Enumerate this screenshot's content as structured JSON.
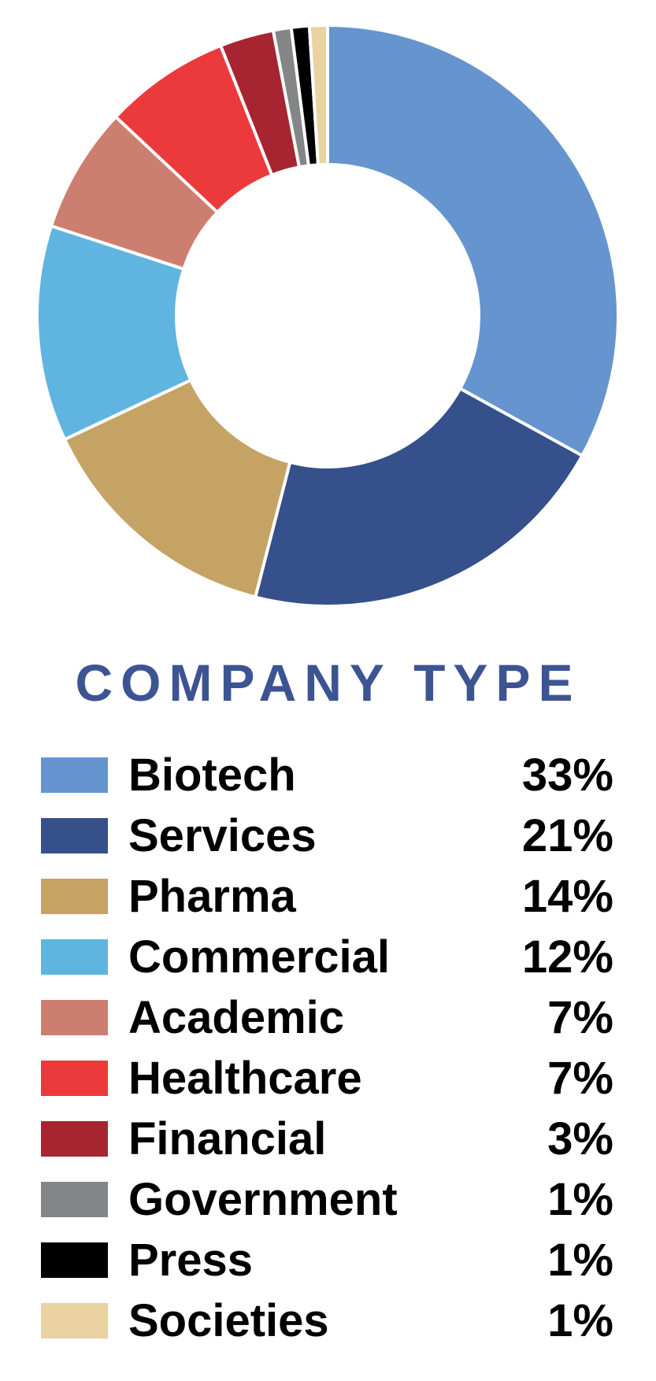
{
  "chart_data": {
    "type": "pie",
    "subtype": "donut",
    "title": "COMPANY TYPE",
    "title_color": "#3D5493",
    "direction": "clockwise",
    "start_angle_deg": 0,
    "inner_radius_ratio": 0.52,
    "slice_gap_color": "#FFFFFF",
    "legend_position": "bottom",
    "series": [
      {
        "label": "Biotech",
        "value": 33,
        "display": "33%",
        "color": "#6694CE"
      },
      {
        "label": "Services",
        "value": 21,
        "display": "21%",
        "color": "#35508A"
      },
      {
        "label": "Pharma",
        "value": 14,
        "display": "14%",
        "color": "#C4A364"
      },
      {
        "label": "Commercial",
        "value": 12,
        "display": "12%",
        "color": "#5FB5E0"
      },
      {
        "label": "Academic",
        "value": 7,
        "display": "7%",
        "color": "#CC7F70"
      },
      {
        "label": "Healthcare",
        "value": 7,
        "display": "7%",
        "color": "#EC3A3C"
      },
      {
        "label": "Financial",
        "value": 3,
        "display": "3%",
        "color": "#A62531"
      },
      {
        "label": "Government",
        "value": 1,
        "display": "1%",
        "color": "#838587"
      },
      {
        "label": "Press",
        "value": 1,
        "display": "1%",
        "color": "#000000"
      },
      {
        "label": "Societies",
        "value": 1,
        "display": "1%",
        "color": "#EAD2A2"
      }
    ]
  }
}
